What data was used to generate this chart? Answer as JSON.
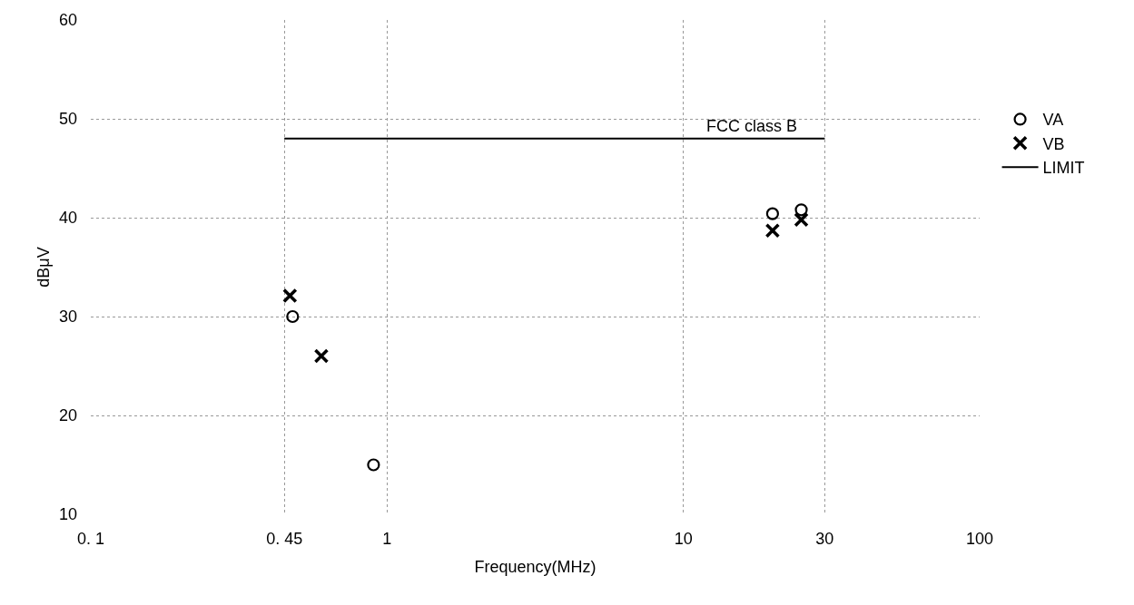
{
  "chart_data": {
    "type": "scatter",
    "xlabel": "Frequency(MHz)",
    "ylabel": "dBμV",
    "log": "x",
    "xlim": [
      0.1,
      100
    ],
    "xticks": [
      {
        "value": 0.1,
        "label": "0. 1"
      },
      {
        "value": 0.45,
        "label": "0. 45"
      },
      1,
      10,
      30,
      100
    ],
    "ylim": [
      10,
      60
    ],
    "yticks": [
      10,
      20,
      30,
      40,
      50,
      60
    ],
    "grid": true,
    "legend": "right",
    "series": [
      {
        "name": "VA",
        "marker": "circle",
        "color": "#000000",
        "x": [
          0.48,
          0.9,
          20,
          25
        ],
        "values": [
          30,
          15,
          40.4,
          40.8
        ]
      },
      {
        "name": "VB",
        "marker": "cross",
        "color": "#000000",
        "x": [
          0.47,
          0.6,
          20,
          25
        ],
        "values": [
          32.1,
          26,
          38.7,
          39.8
        ]
      },
      {
        "name": "LIMIT",
        "type": "line",
        "marker": "none",
        "color": "#000000",
        "x": [
          0.45,
          30
        ],
        "values": [
          48,
          48
        ]
      }
    ],
    "annotations": [
      {
        "text": "FCC class B",
        "x": 17,
        "y": 48
      }
    ]
  }
}
